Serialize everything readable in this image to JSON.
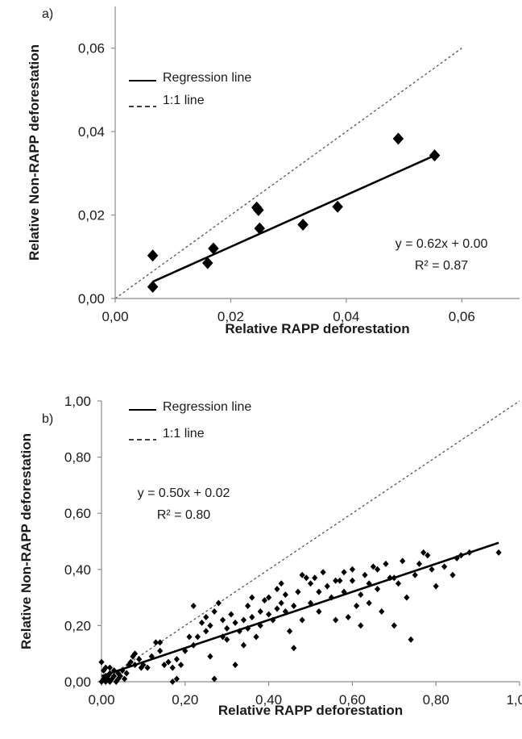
{
  "chart_data": [
    {
      "type": "scatter",
      "panel_label": "a)",
      "xlabel": "Relative RAPP deforestation",
      "ylabel": "Relative Non-RAPP deforestation",
      "xlim": [
        0,
        0.07
      ],
      "ylim": [
        0,
        0.07
      ],
      "x_ticks": [
        0,
        0.02,
        0.04,
        0.06
      ],
      "y_ticks": [
        0,
        0.02,
        0.04,
        0.06
      ],
      "x_tick_labels": [
        "0,00",
        "0,02",
        "0,04",
        "0,06"
      ],
      "y_tick_labels": [
        "0,00",
        "0,02",
        "0,04",
        "0,06"
      ],
      "legend": {
        "regression_label": "Regression line",
        "identity_label": "1:1 line",
        "position": "top-left"
      },
      "regression": {
        "slope": 0.62,
        "intercept": 0.0,
        "x_range": [
          0.0065,
          0.055
        ]
      },
      "identity_range": [
        0,
        0.06
      ],
      "equation_text": "y = 0.62x + 0.00",
      "r2_text": "R² = 0.87",
      "points": [
        [
          0.0065,
          0.0103
        ],
        [
          0.0065,
          0.0028
        ],
        [
          0.016,
          0.0085
        ],
        [
          0.017,
          0.012
        ],
        [
          0.0245,
          0.0218
        ],
        [
          0.0248,
          0.0212
        ],
        [
          0.025,
          0.0168
        ],
        [
          0.0325,
          0.0177
        ],
        [
          0.0385,
          0.022
        ],
        [
          0.049,
          0.0383
        ],
        [
          0.0553,
          0.0343
        ]
      ]
    },
    {
      "type": "scatter",
      "panel_label": "b)",
      "xlabel": "Relative RAPP deforestation",
      "ylabel": "Relative Non-RAPP deforestation",
      "xlim": [
        0,
        1
      ],
      "ylim": [
        0,
        1
      ],
      "x_ticks": [
        0,
        0.2,
        0.4,
        0.6,
        0.8,
        1.0
      ],
      "y_ticks": [
        0,
        0.2,
        0.4,
        0.6,
        0.8,
        1.0
      ],
      "x_tick_labels": [
        "0,00",
        "0,20",
        "0,40",
        "0,60",
        "0,80",
        "1,00"
      ],
      "y_tick_labels": [
        "0,00",
        "0,20",
        "0,40",
        "0,60",
        "0,80",
        "1,00"
      ],
      "legend": {
        "regression_label": "Regression line",
        "identity_label": "1:1 line",
        "position": "top-left"
      },
      "regression": {
        "slope": 0.5,
        "intercept": 0.02,
        "x_range": [
          0,
          0.95
        ]
      },
      "identity_range": [
        0,
        1
      ],
      "equation_text": "y = 0.50x + 0.02",
      "r2_text": "R² = 0.80",
      "points": [
        [
          0.0,
          0.0
        ],
        [
          0.005,
          0.01
        ],
        [
          0.01,
          0.0
        ],
        [
          0.01,
          0.02
        ],
        [
          0.015,
          0.01
        ],
        [
          0.02,
          0.0
        ],
        [
          0.02,
          0.03
        ],
        [
          0.025,
          0.01
        ],
        [
          0.03,
          0.02
        ],
        [
          0.035,
          0.0
        ],
        [
          0.04,
          0.01
        ],
        [
          0.04,
          0.03
        ],
        [
          0.045,
          0.02
        ],
        [
          0.05,
          0.04
        ],
        [
          0.055,
          0.01
        ],
        [
          0.06,
          0.03
        ],
        [
          0.0,
          0.07
        ],
        [
          0.005,
          0.04
        ],
        [
          0.01,
          0.05
        ],
        [
          0.015,
          0.02
        ],
        [
          0.02,
          0.05
        ],
        [
          0.03,
          0.04
        ],
        [
          0.065,
          0.06
        ],
        [
          0.07,
          0.07
        ],
        [
          0.08,
          0.06
        ],
        [
          0.08,
          0.1
        ],
        [
          0.075,
          0.09
        ],
        [
          0.09,
          0.08
        ],
        [
          0.095,
          0.05
        ],
        [
          0.1,
          0.06
        ],
        [
          0.11,
          0.05
        ],
        [
          0.12,
          0.09
        ],
        [
          0.13,
          0.14
        ],
        [
          0.14,
          0.11
        ],
        [
          0.14,
          0.14
        ],
        [
          0.15,
          0.06
        ],
        [
          0.16,
          0.07
        ],
        [
          0.17,
          0.05
        ],
        [
          0.17,
          0.0
        ],
        [
          0.18,
          0.01
        ],
        [
          0.18,
          0.08
        ],
        [
          0.19,
          0.06
        ],
        [
          0.2,
          0.11
        ],
        [
          0.21,
          0.16
        ],
        [
          0.22,
          0.13
        ],
        [
          0.23,
          0.16
        ],
        [
          0.24,
          0.21
        ],
        [
          0.25,
          0.23
        ],
        [
          0.25,
          0.18
        ],
        [
          0.26,
          0.2
        ],
        [
          0.27,
          0.25
        ],
        [
          0.27,
          0.01
        ],
        [
          0.28,
          0.28
        ],
        [
          0.29,
          0.22
        ],
        [
          0.3,
          0.15
        ],
        [
          0.3,
          0.19
        ],
        [
          0.31,
          0.24
        ],
        [
          0.32,
          0.06
        ],
        [
          0.32,
          0.21
        ],
        [
          0.33,
          0.18
        ],
        [
          0.34,
          0.13
        ],
        [
          0.35,
          0.19
        ],
        [
          0.35,
          0.27
        ],
        [
          0.36,
          0.23
        ],
        [
          0.37,
          0.16
        ],
        [
          0.38,
          0.25
        ],
        [
          0.38,
          0.2
        ],
        [
          0.39,
          0.29
        ],
        [
          0.4,
          0.3
        ],
        [
          0.4,
          0.24
        ],
        [
          0.41,
          0.22
        ],
        [
          0.42,
          0.33
        ],
        [
          0.43,
          0.28
        ],
        [
          0.44,
          0.31
        ],
        [
          0.44,
          0.25
        ],
        [
          0.45,
          0.18
        ],
        [
          0.46,
          0.27
        ],
        [
          0.46,
          0.12
        ],
        [
          0.47,
          0.32
        ],
        [
          0.48,
          0.38
        ],
        [
          0.49,
          0.37
        ],
        [
          0.5,
          0.35
        ],
        [
          0.5,
          0.28
        ],
        [
          0.51,
          0.37
        ],
        [
          0.52,
          0.32
        ],
        [
          0.52,
          0.25
        ],
        [
          0.53,
          0.39
        ],
        [
          0.54,
          0.34
        ],
        [
          0.55,
          0.3
        ],
        [
          0.56,
          0.22
        ],
        [
          0.57,
          0.36
        ],
        [
          0.58,
          0.32
        ],
        [
          0.59,
          0.23
        ],
        [
          0.6,
          0.4
        ],
        [
          0.6,
          0.36
        ],
        [
          0.61,
          0.27
        ],
        [
          0.62,
          0.31
        ],
        [
          0.62,
          0.2
        ],
        [
          0.63,
          0.38
        ],
        [
          0.64,
          0.35
        ],
        [
          0.64,
          0.28
        ],
        [
          0.65,
          0.41
        ],
        [
          0.66,
          0.33
        ],
        [
          0.67,
          0.25
        ],
        [
          0.68,
          0.42
        ],
        [
          0.69,
          0.37
        ],
        [
          0.7,
          0.2
        ],
        [
          0.71,
          0.35
        ],
        [
          0.72,
          0.43
        ],
        [
          0.73,
          0.3
        ],
        [
          0.74,
          0.15
        ],
        [
          0.75,
          0.38
        ],
        [
          0.76,
          0.42
        ],
        [
          0.77,
          0.46
        ],
        [
          0.78,
          0.45
        ],
        [
          0.79,
          0.4
        ],
        [
          0.8,
          0.34
        ],
        [
          0.82,
          0.41
        ],
        [
          0.84,
          0.38
        ],
        [
          0.85,
          0.44
        ],
        [
          0.86,
          0.45
        ],
        [
          0.88,
          0.46
        ],
        [
          0.95,
          0.46
        ],
        [
          0.22,
          0.27
        ],
        [
          0.26,
          0.09
        ],
        [
          0.34,
          0.22
        ],
        [
          0.43,
          0.35
        ],
        [
          0.56,
          0.36
        ],
        [
          0.66,
          0.4
        ],
        [
          0.48,
          0.22
        ],
        [
          0.36,
          0.3
        ],
        [
          0.58,
          0.39
        ],
        [
          0.29,
          0.16
        ],
        [
          0.42,
          0.26
        ],
        [
          0.7,
          0.37
        ]
      ]
    }
  ]
}
